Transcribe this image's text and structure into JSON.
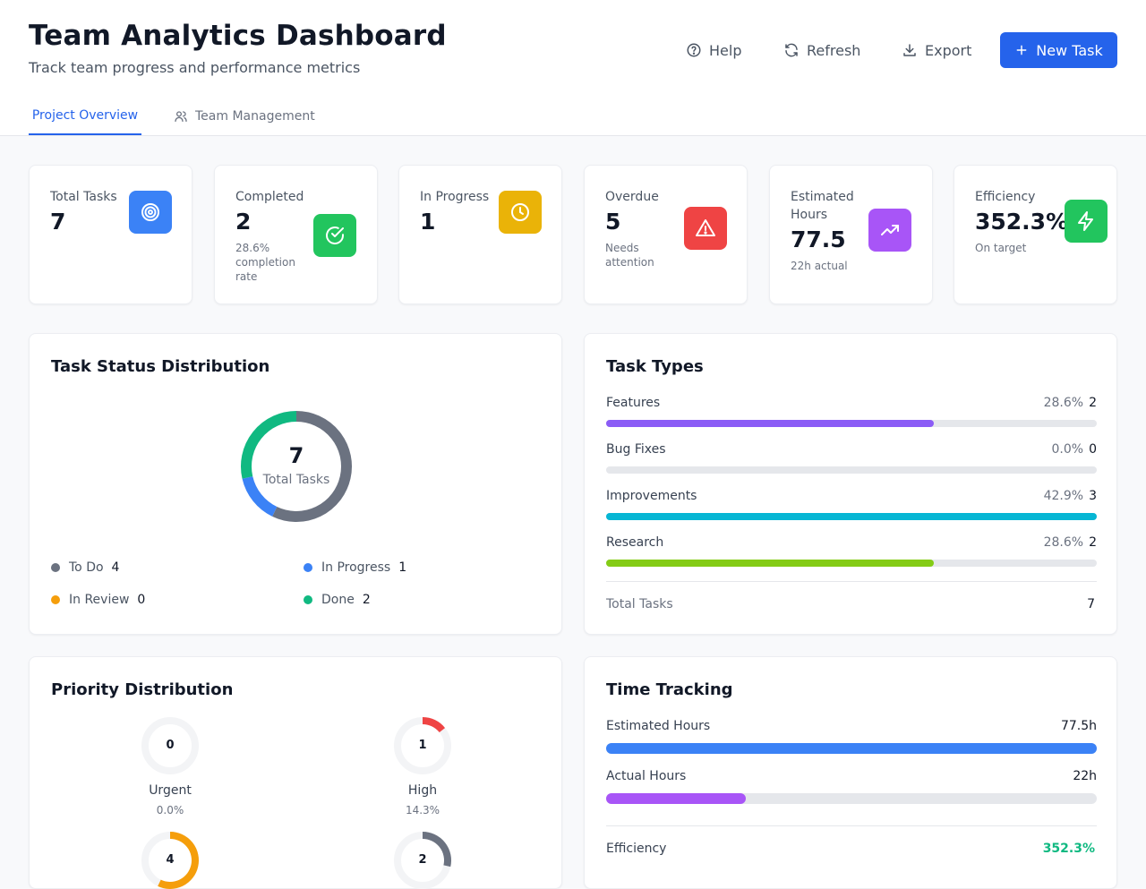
{
  "header": {
    "title": "Team Analytics Dashboard",
    "subtitle": "Track team progress and performance metrics",
    "help_label": "Help",
    "refresh_label": "Refresh",
    "export_label": "Export",
    "new_task_label": "New Task",
    "primary_color": "#2563eb"
  },
  "tabs": [
    {
      "label": "Project Overview",
      "active": true
    },
    {
      "label": "Team Management",
      "active": false
    }
  ],
  "stats": {
    "total": {
      "label": "Total Tasks",
      "value": "7",
      "icon": "target-icon",
      "color": "#3b82f6"
    },
    "completed": {
      "label": "Completed",
      "value": "2",
      "sub": "28.6% completion rate",
      "icon": "check-circle-icon",
      "color": "#22c55e"
    },
    "in_progress": {
      "label": "In Progress",
      "value": "1",
      "icon": "clock-icon",
      "color": "#eab308"
    },
    "overdue": {
      "label": "Overdue",
      "value": "5",
      "sub": "Needs attention",
      "icon": "alert-triangle-icon",
      "color": "#ef4444"
    },
    "estimated": {
      "label": "Estimated Hours",
      "value": "77.5",
      "sub": "22h actual",
      "icon": "trending-up-icon",
      "color": "#a855f7"
    },
    "efficiency": {
      "label": "Efficiency",
      "value": "352.3%",
      "sub": "On target",
      "icon": "lightning-icon",
      "color": "#22c55e"
    }
  },
  "status_distribution": {
    "title": "Task Status Distribution",
    "center_value": "7",
    "center_label": "Total Tasks",
    "items": [
      {
        "label": "To Do",
        "count": "4",
        "color": "#6b7280"
      },
      {
        "label": "In Progress",
        "count": "1",
        "color": "#3b82f6"
      },
      {
        "label": "In Review",
        "count": "0",
        "color": "#f59e0b"
      },
      {
        "label": "Done",
        "count": "2",
        "color": "#10b981"
      }
    ]
  },
  "task_types": {
    "title": "Task Types",
    "items": [
      {
        "label": "Features",
        "pct": "28.6%",
        "count": "2",
        "fraction": 0.667,
        "color": "#8b5cf6"
      },
      {
        "label": "Bug Fixes",
        "pct": "0.0%",
        "count": "0",
        "fraction": 0,
        "color": "#ef4444"
      },
      {
        "label": "Improvements",
        "pct": "42.9%",
        "count": "3",
        "fraction": 1.0,
        "color": "#06b6d4"
      },
      {
        "label": "Research",
        "pct": "28.6%",
        "count": "2",
        "fraction": 0.667,
        "color": "#84cc16"
      }
    ],
    "total_label": "Total Tasks",
    "total_value": "7"
  },
  "priority": {
    "title": "Priority Distribution",
    "items": [
      {
        "label": "Urgent",
        "count": "0",
        "pct": "0.0%",
        "fraction": 0,
        "color": "#ef4444"
      },
      {
        "label": "High",
        "count": "1",
        "pct": "14.3%",
        "fraction": 0.143,
        "color": "#ef4444"
      },
      {
        "label": "",
        "count": "4",
        "pct": "",
        "fraction": 0.571,
        "color": "#f59e0b"
      },
      {
        "label": "",
        "count": "2",
        "pct": "",
        "fraction": 0.286,
        "color": "#6b7280"
      }
    ]
  },
  "time_tracking": {
    "title": "Time Tracking",
    "estimated_label": "Estimated Hours",
    "estimated_value": "77.5h",
    "estimated_fraction": 1.0,
    "actual_label": "Actual Hours",
    "actual_value": "22h",
    "actual_fraction": 0.284,
    "efficiency_label": "Efficiency",
    "efficiency_value": "352.3%",
    "efficiency_color": "#10b981"
  }
}
